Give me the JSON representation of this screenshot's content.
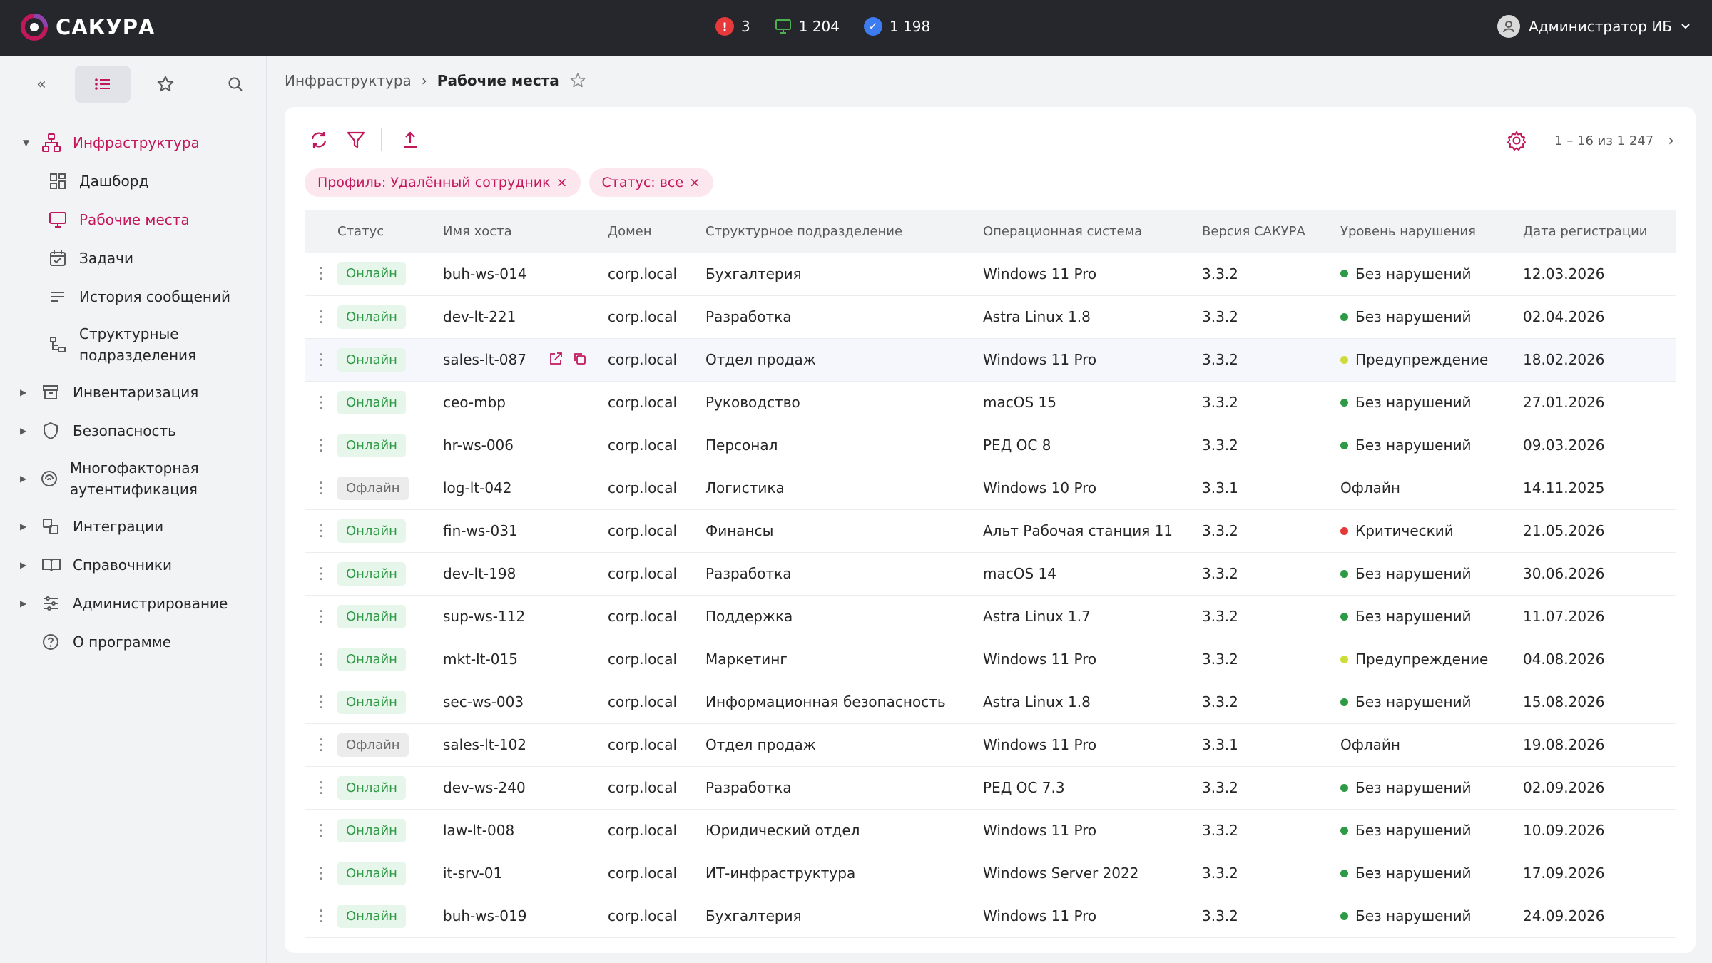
{
  "app": {
    "name": "САКУРА",
    "brand_color": "#c2185b"
  },
  "topbar": {
    "counters": [
      {
        "icon": "alert-icon",
        "value": "3",
        "color": "#e5393c"
      },
      {
        "icon": "monitor-icon",
        "value": "1 204",
        "color": "#4caf50"
      },
      {
        "icon": "check-badge-icon",
        "value": "1 198",
        "color": "#3d7bf0"
      }
    ],
    "user": "Администратор ИБ"
  },
  "sidebar": {
    "collapse_label": "«",
    "items": [
      {
        "label": "Инфраструктура",
        "icon": "network-icon",
        "state": "expanded"
      },
      {
        "label": "Дашборд",
        "icon": "dashboard-icon"
      },
      {
        "label": "Рабочие места",
        "icon": "monitor-icon",
        "state": "active"
      },
      {
        "label": "Задачи",
        "icon": "calendar-icon"
      },
      {
        "label": "История сообщений",
        "icon": "message-list-icon"
      },
      {
        "label": "Структурные подразделения",
        "icon": "hierarchy-icon"
      },
      {
        "label": "Инвентаризация",
        "icon": "archive-icon"
      },
      {
        "label": "Безопасность",
        "icon": "shield-icon"
      },
      {
        "label": "Многофакторная аутентификация",
        "icon": "mfa-icon"
      },
      {
        "label": "Интеграции",
        "icon": "integration-icon"
      },
      {
        "label": "Справочники",
        "icon": "book-icon"
      },
      {
        "label": "Администрирование",
        "icon": "sliders-icon"
      },
      {
        "label": "О программе",
        "icon": "help-icon"
      }
    ]
  },
  "breadcrumb": {
    "parent": "Инфраструктура",
    "separator": "›",
    "current": "Рабочие места"
  },
  "toolbar": {
    "pager_text": "1 – 16 из 1 247",
    "next": "›"
  },
  "filters": [
    {
      "label": "Профиль: Удалённый сотрудник",
      "remove": "×"
    },
    {
      "label": "Статус: все",
      "remove": "×"
    }
  ],
  "table": {
    "columns": [
      "Статус",
      "Имя хоста",
      "Домен",
      "Структурное подразделение",
      "Операционная система",
      "Версия САКУРА",
      "Уровень нарушения",
      "Дата регистрации"
    ],
    "rows": [
      {
        "status": "Онлайн",
        "host": "buh-ws-014",
        "domain": "corp.local",
        "dept": "Бухгалтерия",
        "os": "Windows 11 Pro",
        "ver": "3.3.2",
        "violation": "Без нарушений",
        "date": "12.03.2026"
      },
      {
        "status": "Онлайн",
        "host": "dev-lt-221",
        "domain": "corp.local",
        "dept": "Разработка",
        "os": "Astra Linux 1.8",
        "ver": "3.3.2",
        "violation": "Без нарушений",
        "date": "02.04.2026"
      },
      {
        "status": "Онлайн",
        "host": "sales-lt-087",
        "domain": "corp.local",
        "dept": "Отдел продаж",
        "os": "Windows 11 Pro",
        "ver": "3.3.2",
        "violation": "Предупреждение",
        "date": "18.02.2026"
      },
      {
        "status": "Онлайн",
        "host": "ceo-mbp",
        "domain": "corp.local",
        "dept": "Руководство",
        "os": "macOS 15",
        "ver": "3.3.2",
        "violation": "Без нарушений",
        "date": "27.01.2026"
      },
      {
        "status": "Онлайн",
        "host": "hr-ws-006",
        "domain": "corp.local",
        "dept": "Персонал",
        "os": "РЕД ОС 8",
        "ver": "3.3.2",
        "violation": "Без нарушений",
        "date": "09.03.2026"
      },
      {
        "status": "Офлайн",
        "host": "log-lt-042",
        "domain": "corp.local",
        "dept": "Логистика",
        "os": "Windows 10 Pro",
        "ver": "3.3.1",
        "violation": "Офлайн",
        "date": "14.11.2025"
      },
      {
        "status": "Онлайн",
        "host": "fin-ws-031",
        "domain": "corp.local",
        "dept": "Финансы",
        "os": "Альт Рабочая станция 11",
        "ver": "3.3.2",
        "violation": "Критический",
        "date": "21.05.2026"
      },
      {
        "status": "Онлайн",
        "host": "dev-lt-198",
        "domain": "corp.local",
        "dept": "Разработка",
        "os": "macOS 14",
        "ver": "3.3.2",
        "violation": "Без нарушений",
        "date": "30.06.2026"
      },
      {
        "status": "Онлайн",
        "host": "sup-ws-112",
        "domain": "corp.local",
        "dept": "Поддержка",
        "os": "Astra Linux 1.7",
        "ver": "3.3.2",
        "violation": "Без нарушений",
        "date": "11.07.2026"
      },
      {
        "status": "Онлайн",
        "host": "mkt-lt-015",
        "domain": "corp.local",
        "dept": "Маркетинг",
        "os": "Windows 11 Pro",
        "ver": "3.3.2",
        "violation": "Предупреждение",
        "date": "04.08.2026"
      },
      {
        "status": "Онлайн",
        "host": "sec-ws-003",
        "domain": "corp.local",
        "dept": "Информационная безопасность",
        "os": "Astra Linux 1.8",
        "ver": "3.3.2",
        "violation": "Без нарушений",
        "date": "15.08.2026"
      },
      {
        "status": "Офлайн",
        "host": "sales-lt-102",
        "domain": "corp.local",
        "dept": "Отдел продаж",
        "os": "Windows 11 Pro",
        "ver": "3.3.1",
        "violation": "Офлайн",
        "date": "19.08.2026"
      },
      {
        "status": "Онлайн",
        "host": "dev-ws-240",
        "domain": "corp.local",
        "dept": "Разработка",
        "os": "РЕД ОС 7.3",
        "ver": "3.3.2",
        "violation": "Без нарушений",
        "date": "02.09.2026"
      },
      {
        "status": "Онлайн",
        "host": "law-lt-008",
        "domain": "corp.local",
        "dept": "Юридический отдел",
        "os": "Windows 11 Pro",
        "ver": "3.3.2",
        "violation": "Без нарушений",
        "date": "10.09.2026"
      },
      {
        "status": "Онлайн",
        "host": "it-srv-01",
        "domain": "corp.local",
        "dept": "ИТ-инфраструктура",
        "os": "Windows Server 2022",
        "ver": "3.3.2",
        "violation": "Без нарушений",
        "date": "17.09.2026"
      },
      {
        "status": "Онлайн",
        "host": "buh-ws-019",
        "domain": "corp.local",
        "dept": "Бухгалтерия",
        "os": "Windows 11 Pro",
        "ver": "3.3.2",
        "violation": "Без нарушений",
        "date": "24.09.2026"
      }
    ],
    "highlighted_row": 2,
    "violation_colors": {
      "Без нарушений": "#2e9a45",
      "Предупреждение": "#cddc39",
      "Критический": "#e53935",
      "Офлайн": ""
    }
  }
}
